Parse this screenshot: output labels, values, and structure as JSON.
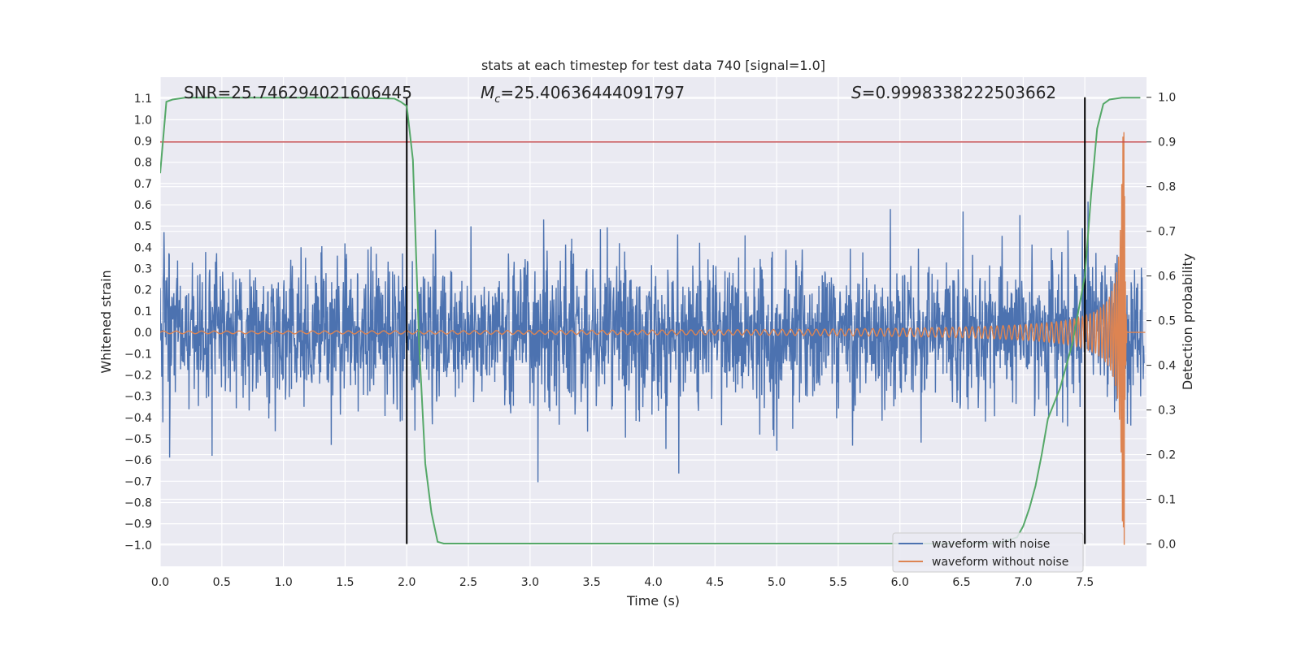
{
  "chart_data": {
    "type": "line",
    "title": "stats at each timestep for test data 740 [signal=1.0]",
    "xlabel": "Time (s)",
    "ylabel": "Whitened strain",
    "y2label": "Detection probability",
    "xlim": [
      0.0,
      8.0
    ],
    "ylim": [
      -1.1,
      1.2
    ],
    "y2lim": [
      -0.05,
      1.045
    ],
    "xticks": [
      0.0,
      0.5,
      1.0,
      1.5,
      2.0,
      2.5,
      3.0,
      3.5,
      4.0,
      4.5,
      5.0,
      5.5,
      6.0,
      6.5,
      7.0,
      7.5
    ],
    "xtick_labels": [
      "0.0",
      "0.5",
      "1.0",
      "1.5",
      "2.0",
      "2.5",
      "3.0",
      "3.5",
      "4.0",
      "4.5",
      "5.0",
      "5.5",
      "6.0",
      "6.5",
      "7.0",
      "7.5"
    ],
    "yticks": [
      -1.0,
      -0.9,
      -0.8,
      -0.7,
      -0.6,
      -0.5,
      -0.4,
      -0.3,
      -0.2,
      -0.1,
      0.0,
      0.1,
      0.2,
      0.3,
      0.4,
      0.5,
      0.6,
      0.7,
      0.8,
      0.9,
      1.0,
      1.1
    ],
    "ytick_labels": [
      "−1.0",
      "−0.9",
      "−0.8",
      "−0.7",
      "−0.6",
      "−0.5",
      "−0.4",
      "−0.3",
      "−0.2",
      "−0.1",
      "0.0",
      "0.1",
      "0.2",
      "0.3",
      "0.4",
      "0.5",
      "0.6",
      "0.7",
      "0.8",
      "0.9",
      "1.0",
      "1.1"
    ],
    "y2ticks": [
      0.0,
      0.1,
      0.2,
      0.3,
      0.4,
      0.5,
      0.6,
      0.7,
      0.8,
      0.9,
      1.0
    ],
    "y2tick_labels": [
      "0.0",
      "0.1",
      "0.2",
      "0.3",
      "0.4",
      "0.5",
      "0.6",
      "0.7",
      "0.8",
      "0.9",
      "1.0"
    ],
    "annotations": {
      "snr": "SNR=25.746294021606445",
      "mc_symbol": "M",
      "mc_sub": "c",
      "mc_value": "=25.40636444091797",
      "s_symbol": "S",
      "s_value": "=0.9998338222503662"
    },
    "legend": {
      "position": "lower-right",
      "entries": [
        {
          "label": "waveform with noise",
          "color": "#4c72b0"
        },
        {
          "label": "waveform without noise",
          "color": "#dd8452"
        }
      ]
    },
    "vlines": [
      2.0,
      7.5
    ],
    "threshold_prob": 0.9,
    "series": [
      {
        "name": "waveform with noise",
        "color": "#4c72b0",
        "kind": "noise",
        "typical_amplitude": 0.3,
        "peak_amplitude": 0.65
      },
      {
        "name": "waveform without noise",
        "color": "#dd8452",
        "kind": "chirp",
        "t_merger": 7.82,
        "peak_amplitude": 1.0
      },
      {
        "name": "detection probability",
        "color": "#55a868",
        "x": [
          0.0,
          0.05,
          0.1,
          0.2,
          0.5,
          1.0,
          1.5,
          1.9,
          1.95,
          2.0,
          2.05,
          2.1,
          2.15,
          2.2,
          2.25,
          2.3,
          2.5,
          3.0,
          4.0,
          5.0,
          6.0,
          6.8,
          6.95,
          7.0,
          7.05,
          7.1,
          7.15,
          7.2,
          7.3,
          7.4,
          7.5,
          7.55,
          7.6,
          7.65,
          7.7,
          7.8,
          7.95
        ],
        "y": [
          0.83,
          0.99,
          0.995,
          0.999,
          0.999,
          0.999,
          0.999,
          0.997,
          0.99,
          0.98,
          0.86,
          0.45,
          0.18,
          0.07,
          0.005,
          0.001,
          0.001,
          0.001,
          0.001,
          0.001,
          0.001,
          0.001,
          0.015,
          0.04,
          0.08,
          0.13,
          0.2,
          0.28,
          0.35,
          0.45,
          0.6,
          0.78,
          0.93,
          0.985,
          0.995,
          0.999,
          0.999
        ]
      }
    ]
  }
}
